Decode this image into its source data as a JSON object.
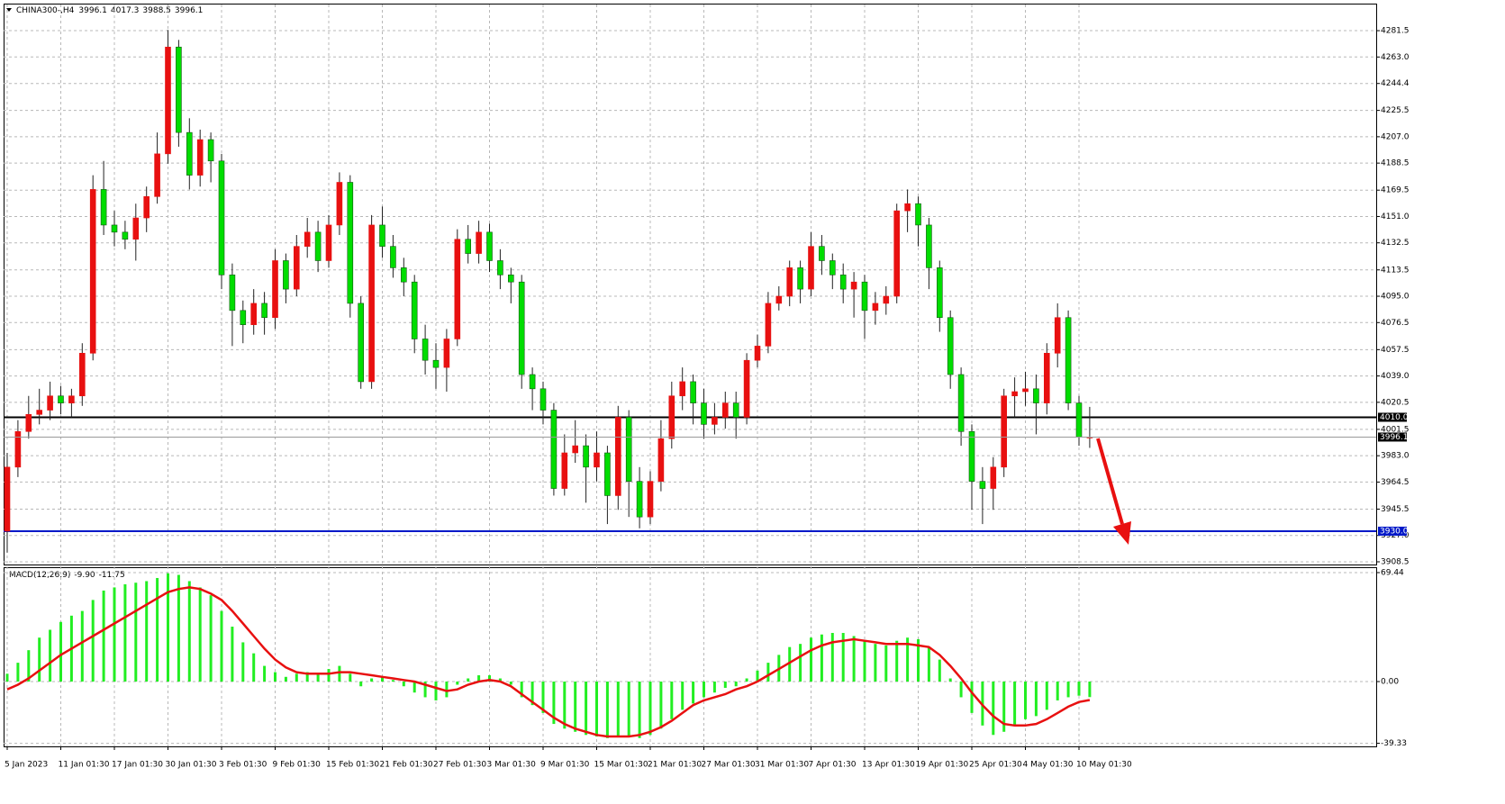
{
  "chart_data": [
    {
      "type": "candlestick",
      "title": "CHINA300-,H4",
      "categories": [
        "5 Jan 2023",
        null,
        null,
        null,
        null,
        "11 Jan 01:30",
        null,
        null,
        null,
        null,
        "17 Jan 01:30",
        null,
        null,
        null,
        null,
        "30 Jan 01:30",
        null,
        null,
        null,
        null,
        "3 Feb 01:30",
        null,
        null,
        null,
        null,
        "9 Feb 01:30",
        null,
        null,
        null,
        null,
        "15 Feb 01:30",
        null,
        null,
        null,
        null,
        "21 Feb 01:30",
        null,
        null,
        null,
        null,
        "27 Feb 01:30",
        null,
        null,
        null,
        null,
        "3 Mar 01:30",
        null,
        null,
        null,
        null,
        "9 Mar 01:30",
        null,
        null,
        null,
        null,
        "15 Mar 01:30",
        null,
        null,
        null,
        null,
        "21 Mar 01:30",
        null,
        null,
        null,
        null,
        "27 Mar 01:30",
        null,
        null,
        null,
        null,
        "31 Mar 01:30",
        null,
        null,
        null,
        null,
        "7 Apr 01:30",
        null,
        null,
        null,
        null,
        "13 Apr 01:30",
        null,
        null,
        null,
        null,
        "19 Apr 01:30",
        null,
        null,
        null,
        null,
        "25 Apr 01:30",
        null,
        null,
        null,
        null,
        "4 May 01:30",
        null,
        null,
        null,
        null,
        "10 May 01:30",
        null
      ],
      "open": [
        3930,
        3975,
        4000,
        4012,
        4015,
        4025,
        4020,
        4025,
        4055,
        4170,
        4145,
        4140,
        4135,
        4150,
        4165,
        4195,
        4270,
        4210,
        4180,
        4205,
        4190,
        4110,
        4085,
        4075,
        4090,
        4080,
        4120,
        4100,
        4130,
        4140,
        4120,
        4145,
        4175,
        4090,
        4035,
        4145,
        4130,
        4115,
        4105,
        4065,
        4050,
        4045,
        4065,
        4135,
        4125,
        4140,
        4120,
        4110,
        4105,
        4040,
        4030,
        4015,
        3960,
        3985,
        3990,
        3975,
        3985,
        3955,
        4010,
        3965,
        3940,
        3965,
        3995,
        4025,
        4035,
        4020,
        4005,
        4010,
        4020,
        4010,
        4050,
        4060,
        4090,
        4095,
        4115,
        4100,
        4130,
        4120,
        4110,
        4100,
        4105,
        4085,
        4090,
        4095,
        4155,
        4160,
        4145,
        4115,
        4080,
        4040,
        4000,
        3965,
        3960,
        3975,
        4025,
        4028,
        4030,
        4020,
        4055,
        4080,
        4020,
        3996.1
      ],
      "high": [
        3985,
        4008,
        4025,
        4030,
        4035,
        4032,
        4030,
        4062,
        4180,
        4190,
        4155,
        4148,
        4160,
        4172,
        4210,
        4282,
        4275,
        4220,
        4212,
        4210,
        4195,
        4118,
        4092,
        4100,
        4098,
        4128,
        4125,
        4138,
        4150,
        4148,
        4152,
        4182,
        4180,
        4095,
        4152,
        4158,
        4138,
        4122,
        4110,
        4075,
        4062,
        4072,
        4142,
        4145,
        4148,
        4146,
        4128,
        4115,
        4110,
        4045,
        4035,
        4020,
        3998,
        4008,
        3998,
        4000,
        3990,
        4018,
        4015,
        3975,
        3972,
        4008,
        4035,
        4045,
        4040,
        4030,
        4020,
        4028,
        4028,
        4055,
        4068,
        4098,
        4102,
        4120,
        4120,
        4140,
        4138,
        4125,
        4118,
        4112,
        4110,
        4098,
        4102,
        4160,
        4170,
        4165,
        4150,
        4120,
        4085,
        4045,
        4005,
        3975,
        3982,
        4030,
        4038,
        4042,
        4040,
        4062,
        4090,
        4085,
        4025,
        4017.3
      ],
      "low": [
        3915,
        3968,
        3995,
        4005,
        4008,
        4012,
        4010,
        4018,
        4050,
        4138,
        4130,
        4128,
        4120,
        4140,
        4160,
        4188,
        4200,
        4170,
        4172,
        4175,
        4100,
        4060,
        4062,
        4068,
        4068,
        4072,
        4090,
        4095,
        4122,
        4112,
        4115,
        4138,
        4080,
        4030,
        4030,
        4122,
        4108,
        4095,
        4055,
        4040,
        4030,
        4028,
        4060,
        4118,
        4118,
        4112,
        4100,
        4090,
        4030,
        4015,
        4005,
        3955,
        3955,
        3978,
        3950,
        3965,
        3935,
        3945,
        3940,
        3932,
        3935,
        3958,
        3988,
        4015,
        4005,
        3995,
        3998,
        4002,
        3995,
        4005,
        4045,
        4055,
        4085,
        4088,
        4090,
        4095,
        4110,
        4100,
        4090,
        4080,
        4065,
        4075,
        4082,
        4090,
        4140,
        4130,
        4100,
        4070,
        4030,
        3990,
        3945,
        3935,
        3945,
        3968,
        4010,
        4018,
        3998,
        4012,
        4045,
        4015,
        3990,
        3988.5
      ],
      "close": [
        3975,
        4000,
        4012,
        4015,
        4025,
        4020,
        4025,
        4055,
        4170,
        4145,
        4140,
        4135,
        4150,
        4165,
        4195,
        4270,
        4210,
        4180,
        4205,
        4190,
        4110,
        4085,
        4075,
        4090,
        4080,
        4120,
        4100,
        4130,
        4140,
        4120,
        4145,
        4175,
        4090,
        4035,
        4145,
        4130,
        4115,
        4105,
        4065,
        4050,
        4045,
        4065,
        4135,
        4125,
        4140,
        4120,
        4110,
        4105,
        4040,
        4030,
        4015,
        3960,
        3985,
        3990,
        3975,
        3985,
        3955,
        4010,
        3965,
        3940,
        3965,
        3995,
        4025,
        4035,
        4020,
        4005,
        4010,
        4020,
        4010,
        4050,
        4060,
        4090,
        4095,
        4115,
        4100,
        4130,
        4120,
        4110,
        4100,
        4105,
        4085,
        4090,
        4095,
        4155,
        4160,
        4145,
        4115,
        4080,
        4040,
        4000,
        3965,
        3960,
        3975,
        4025,
        4028,
        4030,
        4020,
        4055,
        4080,
        4020,
        3996,
        3996.1
      ],
      "up_color": "#e81010",
      "down_color": "#00dd00",
      "ylim": [
        3906.6,
        4300.5
      ],
      "yticks": [
        4281.5,
        {
          "value": 4263,
          "label": "4263.0"
        },
        4244.4,
        4225.5,
        {
          "value": 4207,
          "label": "4207.0"
        },
        4188.5,
        4169.5,
        {
          "value": 4151,
          "label": "4151.0"
        },
        4132.5,
        4113.5,
        {
          "value": 4095,
          "label": "4095.0"
        },
        4076.5,
        4057.5,
        {
          "value": 4039,
          "label": "4039.0"
        },
        4020.5,
        4001.5,
        {
          "value": 3983,
          "label": "3983.0"
        },
        3964.5,
        3945.5,
        {
          "value": 3927,
          "label": "3927.0"
        },
        3908.5
      ],
      "grid": true,
      "hlines": [
        {
          "value": 4010,
          "label": "4010.0",
          "color": "#000000"
        },
        {
          "value": 3930,
          "label": "3930.0",
          "color": "#0018c8"
        }
      ]
    },
    {
      "type": "macd",
      "title": "MACD(12,26,9)",
      "readout": [
        "-9.90",
        "-11.75"
      ],
      "histogram": {
        "color": "#22ee22",
        "values": [
          5,
          12,
          20,
          28,
          33,
          38,
          42,
          45,
          52,
          58,
          60,
          62,
          63,
          64,
          66,
          69,
          68,
          64,
          60,
          55,
          45,
          35,
          25,
          18,
          10,
          6,
          3,
          5,
          6,
          5,
          8,
          10,
          5,
          -3,
          2,
          3,
          1,
          -3,
          -7,
          -10,
          -12,
          -10,
          -2,
          2,
          4,
          4,
          2,
          -2,
          -10,
          -15,
          -20,
          -27,
          -30,
          -32,
          -34,
          -35,
          -36,
          -35,
          -35,
          -36,
          -34,
          -30,
          -24,
          -18,
          -14,
          -10,
          -7,
          -4,
          -3,
          2,
          7,
          12,
          17,
          22,
          24,
          28,
          30,
          31,
          31,
          29,
          26,
          24,
          23,
          26,
          28,
          27,
          22,
          14,
          2,
          -10,
          -20,
          -28,
          -34,
          -32,
          -28,
          -24,
          -22,
          -18,
          -12,
          -10,
          -9,
          -9.9
        ]
      },
      "signal": {
        "color": "#e81010",
        "values": [
          -5,
          -2,
          2,
          7,
          12,
          17,
          21,
          25,
          29,
          33,
          37,
          41,
          45,
          49,
          53,
          57,
          59,
          60,
          59,
          56,
          52,
          45,
          37,
          29,
          21,
          14,
          9,
          6,
          5,
          5,
          5,
          6,
          6,
          5,
          4,
          3,
          2,
          1,
          0,
          -2,
          -4,
          -6,
          -5,
          -2,
          0,
          1,
          0,
          -3,
          -8,
          -13,
          -18,
          -23,
          -27,
          -30,
          -32,
          -34,
          -35,
          -35,
          -35,
          -34,
          -32,
          -29,
          -25,
          -20,
          -15,
          -12,
          -10,
          -8,
          -5,
          -3,
          0,
          4,
          8,
          12,
          16,
          20,
          23,
          25,
          26,
          27,
          26,
          25,
          24,
          24,
          24,
          23,
          22,
          17,
          10,
          2,
          -7,
          -15,
          -22,
          -27,
          -28,
          -28,
          -27,
          -24,
          -20,
          -16,
          -13,
          -11.75
        ]
      },
      "ylim": [
        -41.3,
        72.3
      ],
      "yticks": [
        69.44,
        {
          "value": 0,
          "label": "0.00"
        },
        -39.33
      ],
      "grid": true
    }
  ]
}
